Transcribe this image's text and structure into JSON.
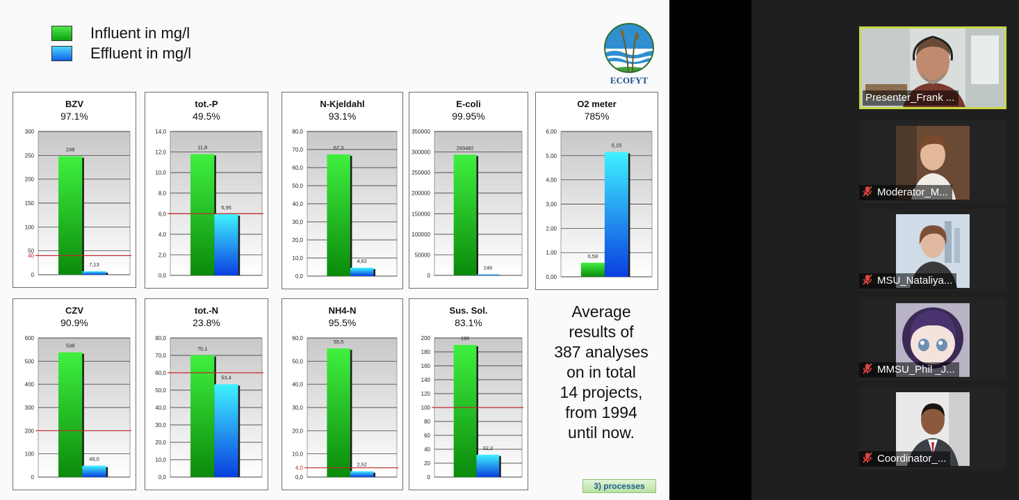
{
  "slide": {
    "legend": [
      {
        "label": "Influent in mg/l",
        "color": "#1fcc1f"
      },
      {
        "label": "Effluent in mg/l",
        "color": "#1aaaf2"
      }
    ],
    "logo_text": "ECOFYT",
    "summary_lines": [
      "Average",
      "results of",
      "387 analyses",
      "on in total",
      "14 projects,",
      "from 1994",
      "until now."
    ],
    "processes_button": "3) processes",
    "colors": {
      "influent": "#1fcc1f",
      "effluent": "#1aaaf2",
      "limit_line": "#c0282a"
    }
  },
  "chart_data": [
    {
      "type": "bar",
      "title": "BZV",
      "percent": "97.1%",
      "yticks": [
        "300",
        "250",
        "200",
        "150",
        "100",
        "50",
        "0"
      ],
      "ylim": [
        0,
        300
      ],
      "influent": 248,
      "effluent": 7.13,
      "influent_label": "248",
      "effluent_label": "7,13",
      "limit": 40,
      "limit_label": "40"
    },
    {
      "type": "bar",
      "title": "tot.-P",
      "percent": "49.5%",
      "yticks": [
        "14,0",
        "12,0",
        "10,0",
        "8,0",
        "6,0",
        "4,0",
        "2,0",
        "0,0"
      ],
      "ylim": [
        0,
        14
      ],
      "influent": 11.8,
      "effluent": 5.95,
      "influent_label": "11,8",
      "effluent_label": "5,95",
      "limit": 6
    },
    {
      "type": "bar",
      "title": "N-Kjeldahl",
      "percent": "93.1%",
      "yticks": [
        "80,0",
        "70,0",
        "60,0",
        "50,0",
        "40,0",
        "30,0",
        "20,0",
        "10,0",
        "0,0"
      ],
      "ylim": [
        0,
        80
      ],
      "influent": 67.3,
      "effluent": 4.62,
      "influent_label": "67,3",
      "effluent_label": "4,62"
    },
    {
      "type": "bar",
      "title": "E-coli",
      "percent": "99.95%",
      "yticks": [
        "350000",
        "300000",
        "250000",
        "200000",
        "150000",
        "100000",
        "50000",
        "0"
      ],
      "ylim": [
        0,
        350000
      ],
      "influent": 293482,
      "effluent": 146,
      "influent_label": "293482",
      "effluent_label": "146"
    },
    {
      "type": "bar",
      "title": "O2 meter",
      "percent": "785%",
      "yticks": [
        "6,00",
        "5,00",
        "4,00",
        "3,00",
        "2,00",
        "1,00",
        "0,00"
      ],
      "ylim": [
        0,
        6
      ],
      "influent": 0.58,
      "effluent": 5.15,
      "influent_label": "0,58",
      "effluent_label": "5,15"
    },
    {
      "type": "bar",
      "title": "CZV",
      "percent": "90.9%",
      "yticks": [
        "600",
        "500",
        "400",
        "300",
        "200",
        "100",
        "0"
      ],
      "ylim": [
        0,
        600
      ],
      "influent": 538,
      "effluent": 49.0,
      "influent_label": "538",
      "effluent_label": "49,0",
      "limit": 200
    },
    {
      "type": "bar",
      "title": "tot.-N",
      "percent": "23.8%",
      "yticks": [
        "80,0",
        "70,0",
        "60,0",
        "50,0",
        "40,0",
        "30,0",
        "20,0",
        "10,0",
        "0,0"
      ],
      "ylim": [
        0,
        80
      ],
      "influent": 70.1,
      "effluent": 53.4,
      "influent_label": "70,1",
      "effluent_label": "53,4",
      "limit": 60
    },
    {
      "type": "bar",
      "title": "NH4-N",
      "percent": "95.5%",
      "yticks": [
        "60,0",
        "50,0",
        "40,0",
        "30,0",
        "20,0",
        "10,0",
        "0,0"
      ],
      "ylim": [
        0,
        60
      ],
      "influent": 55.5,
      "effluent": 2.52,
      "influent_label": "55,5",
      "effluent_label": "2,52",
      "limit": 4,
      "limit_label": "4,0"
    },
    {
      "type": "bar",
      "title": "Sus. Sol.",
      "percent": "83.1%",
      "yticks": [
        "200",
        "180",
        "160",
        "140",
        "120",
        "100",
        "80",
        "60",
        "40",
        "20",
        "0"
      ],
      "ylim": [
        0,
        200
      ],
      "influent": 190,
      "effluent": 32.2,
      "influent_label": "190",
      "effluent_label": "32,2",
      "limit": 100
    }
  ],
  "participants": [
    {
      "name": "Presenter_Frank ...",
      "active": true,
      "muted": false
    },
    {
      "name": "Moderator_M...",
      "active": false,
      "muted": true
    },
    {
      "name": "MSU_Nataliya...",
      "active": false,
      "muted": true
    },
    {
      "name": "MMSU_Phil _J...",
      "active": false,
      "muted": true
    },
    {
      "name": "Coordinator_...",
      "active": false,
      "muted": true
    }
  ]
}
